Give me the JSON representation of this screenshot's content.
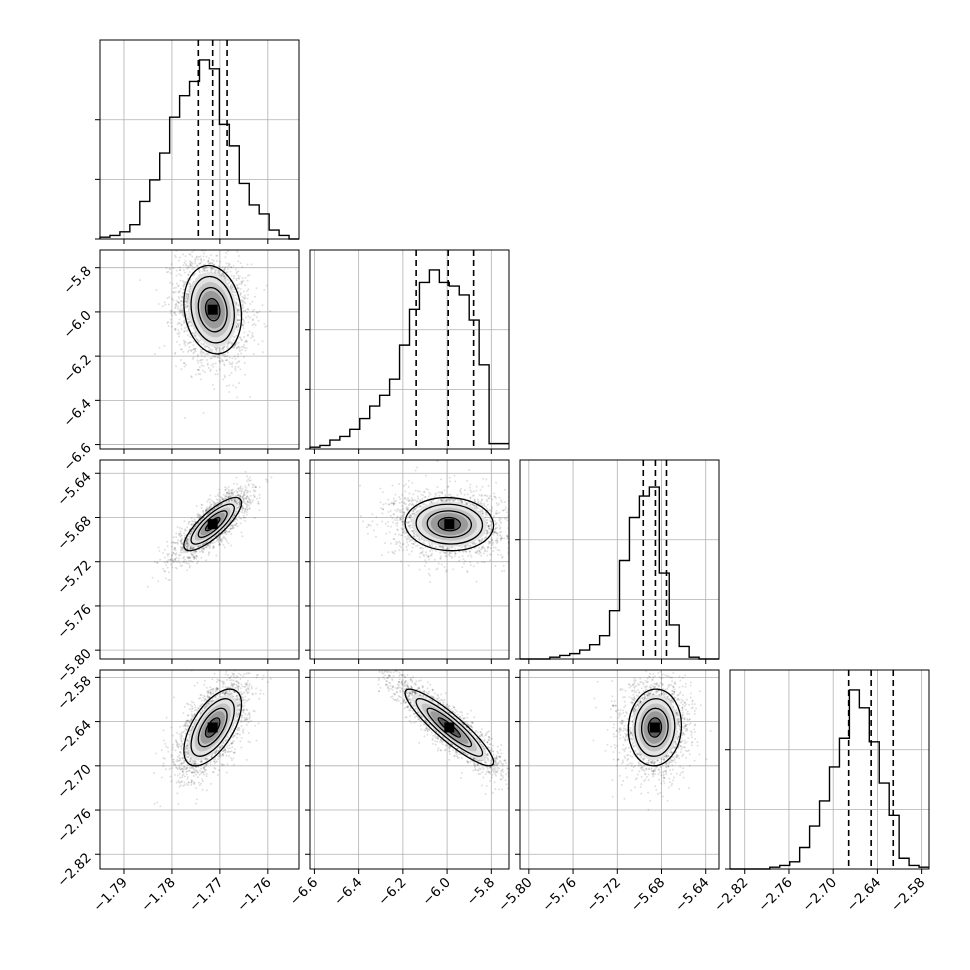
{
  "chart_data": {
    "type": "corner",
    "title": "",
    "grid": true,
    "colors": {
      "line": "#000000",
      "grid": "#b0b0b0",
      "background": "#ffffff"
    },
    "parameters": [
      {
        "index": 0,
        "range": [
          -1.795,
          -1.7535
        ],
        "ticks": [
          "-1.79",
          "-1.78",
          "-1.77",
          "-1.76"
        ],
        "quantiles": [
          -1.7745,
          -1.7715,
          -1.7685
        ],
        "hist_bins": 20,
        "hist_heights": [
          0.01,
          0.02,
          0.04,
          0.08,
          0.21,
          0.33,
          0.48,
          0.68,
          0.8,
          0.88,
          1.0,
          0.95,
          0.64,
          0.52,
          0.31,
          0.19,
          0.14,
          0.05,
          0.02,
          0.0
        ],
        "mean": -1.7715,
        "sd": 0.003
      },
      {
        "index": 1,
        "range": [
          -6.62,
          -5.72
        ],
        "ticks": [
          "-6.6",
          "-6.4",
          "-6.2",
          "-6.0",
          "-5.8"
        ],
        "quantiles": [
          -6.14,
          -5.995,
          -5.88
        ],
        "hist_bins": 20,
        "hist_heights": [
          0.01,
          0.02,
          0.05,
          0.07,
          0.11,
          0.17,
          0.24,
          0.3,
          0.39,
          0.58,
          0.78,
          0.93,
          1.0,
          0.93,
          0.91,
          0.86,
          0.72,
          0.47,
          0.03,
          0.03
        ],
        "mean": -5.99,
        "sd": 0.1
      },
      {
        "index": 2,
        "range": [
          -5.808,
          -5.628
        ],
        "ticks": [
          "-5.80",
          "-5.76",
          "-5.72",
          "-5.68",
          "-5.64"
        ],
        "quantiles": [
          -5.6965,
          -5.6855,
          -5.6755
        ],
        "hist_bins": 20,
        "hist_heights": [
          0.0,
          0.0,
          0.0,
          0.01,
          0.02,
          0.03,
          0.05,
          0.08,
          0.13,
          0.27,
          0.55,
          0.79,
          0.91,
          0.96,
          0.48,
          0.19,
          0.07,
          0.01,
          0.0,
          0.0
        ],
        "mean": -5.686,
        "sd": 0.012
      },
      {
        "index": 3,
        "range": [
          -2.84,
          -2.57
        ],
        "ticks": [
          "-2.82",
          "-2.76",
          "-2.70",
          "-2.64",
          "-2.58"
        ],
        "quantiles": [
          -2.679,
          -2.6485,
          -2.6185
        ],
        "hist_bins": 20,
        "hist_heights": [
          0.0,
          0.0,
          0.0,
          0.0,
          0.01,
          0.02,
          0.04,
          0.12,
          0.24,
          0.38,
          0.57,
          0.73,
          1.0,
          0.9,
          0.71,
          0.48,
          0.3,
          0.06,
          0.02,
          0.01
        ],
        "mean": -2.648,
        "sd": 0.026
      }
    ],
    "correlations": [
      [
        1.0,
        -0.15,
        0.8,
        0.6
      ],
      [
        -0.15,
        1.0,
        -0.05,
        -0.9
      ],
      [
        0.8,
        -0.05,
        1.0,
        0.05
      ],
      [
        0.6,
        -0.9,
        0.05,
        1.0
      ]
    ],
    "contour_levels_sigma": [
      0.5,
      1.0,
      1.5,
      2.0
    ],
    "scatter_points_per_panel": 2200
  }
}
